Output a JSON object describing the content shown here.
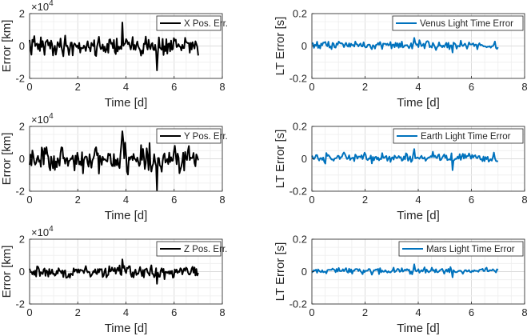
{
  "chart_data": [
    {
      "type": "line",
      "panel": "x-position-error",
      "xlabel": "Time [d]",
      "ylabel": "Error [km]",
      "xlim": [
        0,
        8
      ],
      "ylim": [
        -2,
        2
      ],
      "xticks": [
        "0",
        "2",
        "4",
        "6",
        "8"
      ],
      "yticks": [
        "-2",
        "0",
        "2"
      ],
      "multiplier_base": "×10",
      "multiplier_exp": "4",
      "grid": true,
      "legend": "top-right",
      "series": [
        {
          "name": "X Pos. Err.",
          "color": "#000000",
          "x_range": [
            0,
            7
          ],
          "mean": 0,
          "amplitude": 0.45,
          "extremes": [
            1.45,
            -1.5
          ],
          "note": "noisy signal in units of 10^4 km"
        }
      ]
    },
    {
      "type": "line",
      "panel": "venus-light-time-error",
      "xlabel": "Time [d]",
      "ylabel": "LT Error [s]",
      "xlim": [
        0,
        8
      ],
      "ylim": [
        -0.2,
        0.2
      ],
      "xticks": [
        "0",
        "2",
        "4",
        "6",
        "8"
      ],
      "yticks": [
        "-0.2",
        "0",
        "0.2"
      ],
      "grid": true,
      "legend": "top-right",
      "series": [
        {
          "name": "Venus Light Time Error",
          "color": "#0072BD",
          "x_range": [
            0,
            7
          ],
          "mean": 0.005,
          "amplitude": 0.018,
          "extremes": [
            0.05,
            -0.04
          ]
        }
      ]
    },
    {
      "type": "line",
      "panel": "y-position-error",
      "xlabel": "Time [d]",
      "ylabel": "Error [km]",
      "xlim": [
        0,
        8
      ],
      "ylim": [
        -2,
        2
      ],
      "xticks": [
        "0",
        "2",
        "4",
        "6",
        "8"
      ],
      "yticks": [
        "-2",
        "0",
        "2"
      ],
      "multiplier_base": "×10",
      "multiplier_exp": "4",
      "grid": true,
      "legend": "top-right",
      "series": [
        {
          "name": "Y Pos. Err.",
          "color": "#000000",
          "x_range": [
            0,
            7
          ],
          "mean": 0,
          "amplitude": 0.65,
          "extremes": [
            1.7,
            -1.95
          ]
        }
      ]
    },
    {
      "type": "line",
      "panel": "earth-light-time-error",
      "xlabel": "Time [d]",
      "ylabel": "LT Error [s]",
      "xlim": [
        0,
        8
      ],
      "ylim": [
        -0.2,
        0.2
      ],
      "xticks": [
        "0",
        "2",
        "4",
        "6",
        "8"
      ],
      "yticks": [
        "-0.2",
        "0",
        "0.2"
      ],
      "grid": true,
      "legend": "top-right",
      "series": [
        {
          "name": "Earth Light Time Error",
          "color": "#0072BD",
          "x_range": [
            0,
            7
          ],
          "mean": 0.005,
          "amplitude": 0.022,
          "extremes": [
            0.06,
            -0.07
          ]
        }
      ]
    },
    {
      "type": "line",
      "panel": "z-position-error",
      "xlabel": "Time [d]",
      "ylabel": "Error [km]",
      "xlim": [
        0,
        8
      ],
      "ylim": [
        -2,
        2
      ],
      "xticks": [
        "0",
        "2",
        "4",
        "6",
        "8"
      ],
      "yticks": [
        "-2",
        "0",
        "2"
      ],
      "multiplier_base": "×10",
      "multiplier_exp": "4",
      "grid": true,
      "legend": "top-right",
      "series": [
        {
          "name": "Z Pos. Err.",
          "color": "#000000",
          "x_range": [
            0,
            7
          ],
          "mean": 0,
          "amplitude": 0.3,
          "extremes": [
            0.75,
            -0.75
          ]
        }
      ]
    },
    {
      "type": "line",
      "panel": "mars-light-time-error",
      "xlabel": "Time [d]",
      "ylabel": "LT Error [s]",
      "xlim": [
        0,
        8
      ],
      "ylim": [
        -0.2,
        0.2
      ],
      "xticks": [
        "0",
        "2",
        "4",
        "6",
        "8"
      ],
      "yticks": [
        "-0.2",
        "0",
        "0.2"
      ],
      "grid": true,
      "legend": "top-right",
      "series": [
        {
          "name": "Mars Light Time Error",
          "color": "#0072BD",
          "x_range": [
            0,
            7
          ],
          "mean": 0.005,
          "amplitude": 0.014,
          "extremes": [
            0.045,
            -0.035
          ]
        }
      ]
    }
  ]
}
